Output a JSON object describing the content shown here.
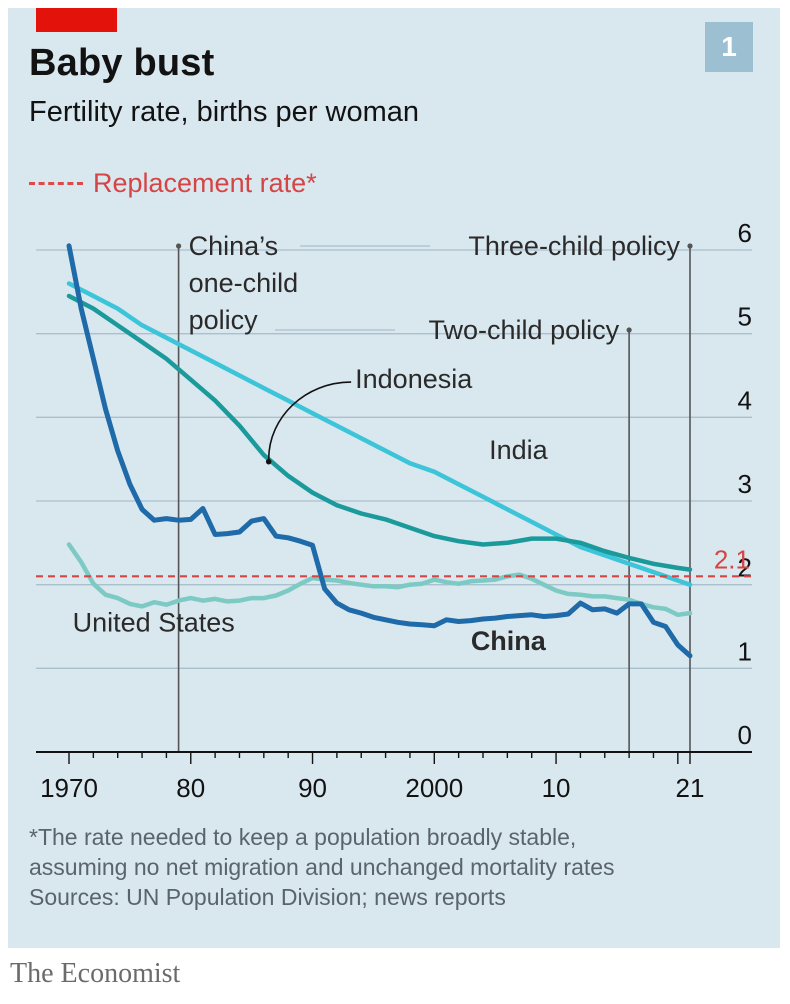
{
  "page": {
    "badge_number": "1",
    "title": "Baby bust",
    "subtitle": "Fertility rate, births per woman",
    "legend_label": "Replacement rate*",
    "footnote_lines": [
      "*The rate needed to keep a population broadly stable,",
      "assuming no net migration and unchanged mortality rates",
      "Sources: UN Population Division; news reports"
    ],
    "brand": "The Economist"
  },
  "chart_data": {
    "type": "line",
    "x_tick_labels": [
      "1970",
      "80",
      "90",
      "2000",
      "10",
      "21"
    ],
    "x_tick_values": [
      1970,
      1980,
      1990,
      2000,
      2010,
      2021
    ],
    "xlim": [
      1970,
      2021
    ],
    "ylim": [
      0,
      6
    ],
    "y_ticks": [
      0,
      1,
      2,
      3,
      4,
      5,
      6
    ],
    "y_axis_side": "right",
    "grid": true,
    "replacement_rate": {
      "value": 2.1,
      "label": "2.1",
      "color": "#d64545"
    },
    "events": [
      {
        "year": 1979,
        "label_lines": [
          "China’s",
          "one-child",
          "policy"
        ]
      },
      {
        "year": 2016,
        "label_lines": [
          "Two-child policy"
        ]
      },
      {
        "year": 2021,
        "label_lines": [
          "Three-child policy"
        ]
      }
    ],
    "series": [
      {
        "name": "United States",
        "color": "#7dcac4",
        "bold": false,
        "x": [
          1970,
          1971,
          1972,
          1973,
          1974,
          1975,
          1976,
          1977,
          1978,
          1979,
          1980,
          1981,
          1982,
          1983,
          1984,
          1985,
          1986,
          1987,
          1988,
          1989,
          1990,
          1991,
          1992,
          1993,
          1994,
          1995,
          1996,
          1997,
          1998,
          1999,
          2000,
          2001,
          2002,
          2003,
          2004,
          2005,
          2006,
          2007,
          2008,
          2009,
          2010,
          2011,
          2012,
          2013,
          2014,
          2015,
          2016,
          2017,
          2018,
          2019,
          2020,
          2021
        ],
        "y": [
          2.48,
          2.27,
          2.01,
          1.88,
          1.84,
          1.77,
          1.74,
          1.79,
          1.76,
          1.81,
          1.84,
          1.81,
          1.83,
          1.8,
          1.81,
          1.84,
          1.84,
          1.87,
          1.93,
          2.01,
          2.08,
          2.06,
          2.05,
          2.02,
          2.0,
          1.98,
          1.98,
          1.97,
          2.0,
          2.01,
          2.06,
          2.03,
          2.01,
          2.04,
          2.05,
          2.06,
          2.1,
          2.12,
          2.07,
          2.0,
          1.93,
          1.89,
          1.88,
          1.86,
          1.86,
          1.84,
          1.82,
          1.77,
          1.73,
          1.71,
          1.64,
          1.66
        ]
      },
      {
        "name": "India",
        "color": "#3cc4d9",
        "bold": false,
        "x": [
          1970,
          1972,
          1974,
          1976,
          1978,
          1980,
          1982,
          1984,
          1986,
          1988,
          1990,
          1992,
          1994,
          1996,
          1998,
          2000,
          2002,
          2004,
          2006,
          2008,
          2010,
          2012,
          2014,
          2016,
          2018,
          2020,
          2021
        ],
        "y": [
          5.6,
          5.45,
          5.3,
          5.1,
          4.95,
          4.8,
          4.65,
          4.5,
          4.35,
          4.2,
          4.05,
          3.9,
          3.75,
          3.6,
          3.45,
          3.35,
          3.2,
          3.05,
          2.9,
          2.75,
          2.6,
          2.45,
          2.35,
          2.25,
          2.15,
          2.05,
          2.0
        ]
      },
      {
        "name": "Indonesia",
        "color": "#1b9a9c",
        "bold": false,
        "x": [
          1970,
          1972,
          1974,
          1976,
          1978,
          1980,
          1982,
          1984,
          1986,
          1988,
          1990,
          1992,
          1994,
          1996,
          1998,
          2000,
          2002,
          2004,
          2006,
          2008,
          2010,
          2012,
          2014,
          2016,
          2018,
          2020,
          2021
        ],
        "y": [
          5.45,
          5.3,
          5.1,
          4.9,
          4.7,
          4.45,
          4.2,
          3.9,
          3.55,
          3.3,
          3.1,
          2.95,
          2.85,
          2.78,
          2.68,
          2.58,
          2.52,
          2.48,
          2.5,
          2.55,
          2.55,
          2.5,
          2.4,
          2.32,
          2.25,
          2.2,
          2.18
        ]
      },
      {
        "name": "China",
        "color": "#1f6aa8",
        "bold": true,
        "x": [
          1970,
          1971,
          1972,
          1973,
          1974,
          1975,
          1976,
          1977,
          1978,
          1979,
          1980,
          1981,
          1982,
          1983,
          1984,
          1985,
          1986,
          1987,
          1988,
          1989,
          1990,
          1991,
          1992,
          1993,
          1994,
          1995,
          1996,
          1997,
          1998,
          1999,
          2000,
          2001,
          2002,
          2003,
          2004,
          2005,
          2006,
          2007,
          2008,
          2009,
          2010,
          2011,
          2012,
          2013,
          2014,
          2015,
          2016,
          2017,
          2018,
          2019,
          2020,
          2021
        ],
        "y": [
          6.05,
          5.3,
          4.7,
          4.1,
          3.6,
          3.2,
          2.9,
          2.77,
          2.79,
          2.77,
          2.78,
          2.91,
          2.6,
          2.61,
          2.63,
          2.76,
          2.79,
          2.58,
          2.56,
          2.52,
          2.47,
          1.95,
          1.78,
          1.7,
          1.66,
          1.61,
          1.58,
          1.55,
          1.53,
          1.52,
          1.51,
          1.58,
          1.56,
          1.57,
          1.59,
          1.6,
          1.62,
          1.63,
          1.64,
          1.62,
          1.63,
          1.65,
          1.78,
          1.7,
          1.71,
          1.66,
          1.77,
          1.77,
          1.55,
          1.5,
          1.28,
          1.15
        ]
      }
    ],
    "series_labels": [
      {
        "series": "India",
        "text": "India",
        "x": 2004.5,
        "y": 3.5
      },
      {
        "series": "Indonesia",
        "text": "Indonesia",
        "x": 1993.5,
        "y": 4.35
      },
      {
        "series": "United States",
        "text": "United States",
        "x": 1970.3,
        "y": 1.44
      },
      {
        "series": "China",
        "text": "China",
        "x": 2003,
        "y": 1.22
      }
    ]
  }
}
